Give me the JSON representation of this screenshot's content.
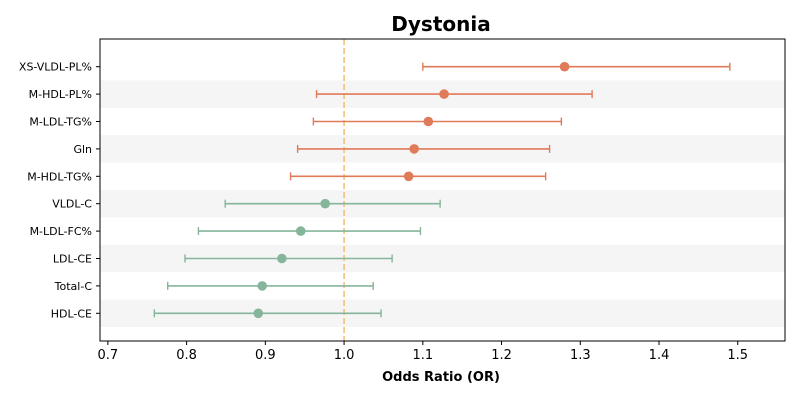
{
  "chart_data": {
    "type": "scatter",
    "title": "Dystonia",
    "xlabel": "Odds Ratio (OR)",
    "ylabel": "",
    "xlim": [
      0.69,
      1.56
    ],
    "xticks": [
      "0.7",
      "0.8",
      "0.9",
      "1.0",
      "1.1",
      "1.2",
      "1.3",
      "1.4",
      "1.5"
    ],
    "xtick_values": [
      0.7,
      0.8,
      0.9,
      1.0,
      1.1,
      1.2,
      1.3,
      1.4,
      1.5
    ],
    "reference_line": 1.0,
    "alternating_row_shading": true,
    "colors": {
      "risk": "#e07b5a",
      "protective": "#85b59a",
      "reference": "#f0c27a",
      "band": "#f5f5f5"
    },
    "rows": [
      {
        "label": "XS-VLDL-PL%",
        "or": 1.28,
        "ci_low": 1.1,
        "ci_high": 1.49,
        "group": "risk"
      },
      {
        "label": "M-HDL-PL%",
        "or": 1.127,
        "ci_low": 0.965,
        "ci_high": 1.315,
        "group": "risk"
      },
      {
        "label": "M-LDL-TG%",
        "or": 1.107,
        "ci_low": 0.961,
        "ci_high": 1.276,
        "group": "risk"
      },
      {
        "label": "Gln",
        "or": 1.089,
        "ci_low": 0.941,
        "ci_high": 1.261,
        "group": "risk"
      },
      {
        "label": "M-HDL-TG%",
        "or": 1.082,
        "ci_low": 0.932,
        "ci_high": 1.256,
        "group": "risk"
      },
      {
        "label": "VLDL-C",
        "or": 0.976,
        "ci_low": 0.849,
        "ci_high": 1.122,
        "group": "protective"
      },
      {
        "label": "M-LDL-FC%",
        "or": 0.945,
        "ci_low": 0.815,
        "ci_high": 1.097,
        "group": "protective"
      },
      {
        "label": "LDL-CE",
        "or": 0.921,
        "ci_low": 0.798,
        "ci_high": 1.061,
        "group": "protective"
      },
      {
        "label": "Total-C",
        "or": 0.896,
        "ci_low": 0.776,
        "ci_high": 1.037,
        "group": "protective"
      },
      {
        "label": "HDL-CE",
        "or": 0.891,
        "ci_low": 0.759,
        "ci_high": 1.047,
        "group": "protective"
      }
    ]
  }
}
